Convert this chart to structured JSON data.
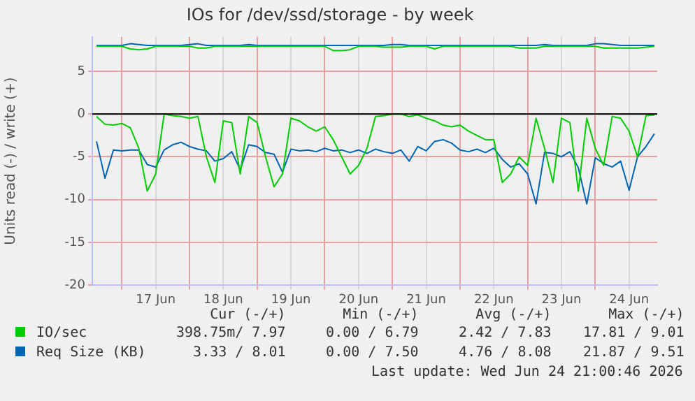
{
  "chart_data": {
    "type": "line",
    "title": "IOs for /dev/ssd/storage - by week",
    "ylabel": "Units read (-) / write (+)",
    "x": [
      "2026-06-16T15:00",
      "2026-06-16T18:00",
      "2026-06-16T21:00",
      "2026-06-17T00:00",
      "2026-06-17T03:00",
      "2026-06-17T06:00",
      "2026-06-17T09:00",
      "2026-06-17T12:00",
      "2026-06-17T15:00",
      "2026-06-17T18:00",
      "2026-06-17T21:00",
      "2026-06-18T00:00",
      "2026-06-18T03:00",
      "2026-06-18T06:00",
      "2026-06-18T09:00",
      "2026-06-18T12:00",
      "2026-06-18T15:00",
      "2026-06-18T18:00",
      "2026-06-18T21:00",
      "2026-06-19T00:00",
      "2026-06-19T03:00",
      "2026-06-19T06:00",
      "2026-06-19T09:00",
      "2026-06-19T12:00",
      "2026-06-19T15:00",
      "2026-06-19T18:00",
      "2026-06-19T21:00",
      "2026-06-20T00:00",
      "2026-06-20T03:00",
      "2026-06-20T06:00",
      "2026-06-20T09:00",
      "2026-06-20T12:00",
      "2026-06-20T15:00",
      "2026-06-20T18:00",
      "2026-06-20T21:00",
      "2026-06-21T00:00",
      "2026-06-21T03:00",
      "2026-06-21T06:00",
      "2026-06-21T09:00",
      "2026-06-21T12:00",
      "2026-06-21T15:00",
      "2026-06-21T18:00",
      "2026-06-21T21:00",
      "2026-06-22T00:00",
      "2026-06-22T03:00",
      "2026-06-22T06:00",
      "2026-06-22T09:00",
      "2026-06-22T12:00",
      "2026-06-22T15:00",
      "2026-06-22T18:00",
      "2026-06-22T21:00",
      "2026-06-23T00:00",
      "2026-06-23T03:00",
      "2026-06-23T06:00",
      "2026-06-23T09:00",
      "2026-06-23T12:00",
      "2026-06-23T15:00",
      "2026-06-23T18:00",
      "2026-06-23T21:00",
      "2026-06-24T00:00",
      "2026-06-24T03:00",
      "2026-06-24T06:00",
      "2026-06-24T09:00",
      "2026-06-24T12:00",
      "2026-06-24T15:00",
      "2026-06-24T18:00",
      "2026-06-24T21:00"
    ],
    "series": [
      {
        "name": "IO/sec",
        "color": "#00cc00",
        "values": [
          -0.3,
          -1.2,
          -1.3,
          -1.1,
          -1.6,
          -4,
          -9,
          -7,
          0,
          -0.2,
          -0.3,
          -0.5,
          -0.3,
          -5,
          -8,
          -0.8,
          -1,
          -7,
          -0.3,
          -1,
          -5,
          -8.5,
          -7,
          -0.5,
          -0.8,
          -1.5,
          -2,
          -1.5,
          -3,
          -5,
          -7,
          -6,
          -4,
          -0.3,
          -0.2,
          0,
          0,
          -0.3,
          -0.1,
          -0.5,
          -0.8,
          -1.3,
          -1.5,
          -1.3,
          -2,
          -2.5,
          -3,
          -3,
          -8,
          -7,
          -5,
          -6,
          -0.5,
          -4,
          -8,
          -0.5,
          -1,
          -9,
          -0.5,
          -4,
          -6,
          -0.3,
          -0.5,
          -2,
          -5,
          -0.2,
          -0.1
        ]
      },
      {
        "color": "#00cc00",
        "values": [
          7.9,
          7.9,
          7.9,
          7.9,
          7.6,
          7.5,
          7.6,
          7.9,
          7.9,
          7.9,
          7.9,
          7.9,
          7.7,
          7.7,
          7.9,
          7.9,
          7.9,
          7.9,
          7.9,
          7.9,
          7.9,
          7.9,
          7.9,
          7.9,
          7.9,
          7.9,
          7.9,
          7.9,
          7.4,
          7.4,
          7.5,
          7.9,
          7.9,
          7.9,
          7.8,
          7.8,
          7.8,
          7.9,
          7.9,
          7.9,
          7.6,
          7.9,
          7.9,
          7.9,
          7.9,
          7.9,
          7.9,
          7.9,
          7.9,
          7.9,
          7.7,
          7.7,
          7.7,
          7.9,
          7.9,
          7.9,
          7.9,
          7.9,
          7.9,
          7.9,
          7.7,
          7.7,
          7.7,
          7.7,
          7.7,
          7.8,
          7.9
        ]
      },
      {
        "name": "Req Size (KB)",
        "color": "#0066b3",
        "values": [
          -3.2,
          -7.5,
          -4.2,
          -4.3,
          -4.2,
          -4.2,
          -5.9,
          -6.2,
          -4.2,
          -3.6,
          -3.3,
          -3.8,
          -4.1,
          -4.3,
          -5.5,
          -5.2,
          -4.4,
          -6.5,
          -3.6,
          -3.8,
          -4.5,
          -4.7,
          -6.8,
          -4.1,
          -4.3,
          -4.2,
          -4.4,
          -4,
          -4.3,
          -4.2,
          -4.5,
          -4.2,
          -4.6,
          -4.1,
          -4.4,
          -4.6,
          -4.2,
          -5.5,
          -3.8,
          -4.3,
          -3.2,
          -3,
          -3.4,
          -4.2,
          -4.4,
          -4.1,
          -4.5,
          -4,
          -5.3,
          -6.2,
          -5.8,
          -7,
          -10.5,
          -4.5,
          -4.6,
          -5,
          -4.4,
          -6.3,
          -10.5,
          -5.1,
          -5.8,
          -6.2,
          -5.5,
          -8.9,
          -5,
          -3.8,
          -2.3
        ]
      },
      {
        "color": "#0066b3",
        "values": [
          8,
          8,
          8,
          8,
          8.2,
          8.1,
          8,
          8,
          8,
          8,
          8,
          8.1,
          8.2,
          8,
          8,
          8,
          8,
          8,
          8.1,
          8,
          8,
          8,
          8,
          8,
          8,
          8,
          8,
          8,
          8,
          8,
          8,
          8,
          8,
          8,
          8,
          8.1,
          8.1,
          8,
          8,
          8,
          8,
          8,
          8,
          8,
          8,
          8,
          8,
          8,
          8,
          8,
          8,
          8,
          8,
          8.1,
          8,
          8,
          8,
          8,
          8,
          8.2,
          8.2,
          8.1,
          8,
          8,
          8,
          8,
          8
        ]
      }
    ],
    "xlim": [
      "2026-06-16T13:30",
      "2026-06-24T22:00"
    ],
    "xticks": [
      {
        "value": "2026-06-17T00:00",
        "label": null
      },
      {
        "value": "2026-06-17T12:00",
        "label": "17 Jun"
      },
      {
        "value": "2026-06-18T00:00",
        "label": null
      },
      {
        "value": "2026-06-18T12:00",
        "label": "18 Jun"
      },
      {
        "value": "2026-06-19T00:00",
        "label": null
      },
      {
        "value": "2026-06-19T12:00",
        "label": "19 Jun"
      },
      {
        "value": "2026-06-20T00:00",
        "label": null
      },
      {
        "value": "2026-06-20T12:00",
        "label": "20 Jun"
      },
      {
        "value": "2026-06-21T00:00",
        "label": null
      },
      {
        "value": "2026-06-21T12:00",
        "label": "21 Jun"
      },
      {
        "value": "2026-06-22T00:00",
        "label": null
      },
      {
        "value": "2026-06-22T12:00",
        "label": "22 Jun"
      },
      {
        "value": "2026-06-23T00:00",
        "label": null
      },
      {
        "value": "2026-06-23T12:00",
        "label": "23 Jun"
      },
      {
        "value": "2026-06-24T00:00",
        "label": null
      },
      {
        "value": "2026-06-24T12:00",
        "label": "24 Jun"
      }
    ],
    "ylim": [
      -20,
      9
    ],
    "yticks": [
      -20,
      -15,
      -10,
      -5,
      0,
      5
    ],
    "ref_lines": [
      {
        "axis": "y",
        "value": 0,
        "color": "#000000"
      }
    ],
    "grid": true,
    "legend": "bottom",
    "marker": "none",
    "line_style": "solid",
    "annotations": [
      "Cur (-/+)",
      "Min (-/+)",
      "Avg (-/+)",
      "Max (-/+)",
      "398.75m/ 7.97",
      "0.00 / 6.79",
      "2.42 / 7.83",
      "17.81 / 9.01",
      "3.33 / 8.01",
      "0.00 / 7.50",
      "4.76 / 8.08",
      "21.87 / 9.51",
      "Last update: Wed Jun 24 21:00:46 2026"
    ]
  }
}
